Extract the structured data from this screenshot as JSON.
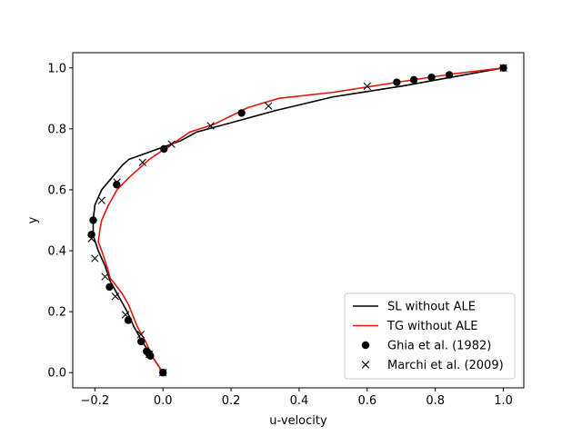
{
  "chart_data": {
    "type": "line",
    "title": "",
    "xlabel": "u-velocity",
    "ylabel": "y",
    "xlim": [
      -0.265,
      1.06
    ],
    "ylim": [
      -0.05,
      1.05
    ],
    "xticks": [
      -0.2,
      0.0,
      0.2,
      0.4,
      0.6,
      0.8,
      1.0
    ],
    "xtick_labels": [
      "−0.2",
      "0.0",
      "0.2",
      "0.4",
      "0.6",
      "0.8",
      "1.0"
    ],
    "yticks": [
      0.0,
      0.2,
      0.4,
      0.6,
      0.8,
      1.0
    ],
    "ytick_labels": [
      "0.0",
      "0.2",
      "0.4",
      "0.6",
      "0.8",
      "1.0"
    ],
    "grid": false,
    "legend_position": "lower-right",
    "series": [
      {
        "name": "SL without ALE",
        "kind": "line",
        "color": "#000000",
        "points": [
          [
            0.0,
            0.0
          ],
          [
            -0.03,
            0.05
          ],
          [
            -0.06,
            0.1
          ],
          [
            -0.085,
            0.15
          ],
          [
            -0.105,
            0.2
          ],
          [
            -0.13,
            0.25
          ],
          [
            -0.155,
            0.3
          ],
          [
            -0.17,
            0.35
          ],
          [
            -0.19,
            0.4
          ],
          [
            -0.205,
            0.45
          ],
          [
            -0.205,
            0.5
          ],
          [
            -0.2,
            0.55
          ],
          [
            -0.18,
            0.6
          ],
          [
            -0.15,
            0.64
          ],
          [
            -0.12,
            0.68
          ],
          [
            -0.1,
            0.7
          ],
          [
            -0.05,
            0.72
          ],
          [
            0.0,
            0.74
          ],
          [
            0.05,
            0.76
          ],
          [
            0.1,
            0.79
          ],
          [
            0.2,
            0.82
          ],
          [
            0.33,
            0.86
          ],
          [
            0.5,
            0.905
          ],
          [
            0.7,
            0.94
          ],
          [
            0.85,
            0.97
          ],
          [
            1.0,
            1.0
          ]
        ]
      },
      {
        "name": "TG without ALE",
        "kind": "line",
        "color": "#e8140c",
        "points": [
          [
            0.0,
            0.0
          ],
          [
            -0.03,
            0.05
          ],
          [
            -0.05,
            0.1
          ],
          [
            -0.075,
            0.15
          ],
          [
            -0.1,
            0.22
          ],
          [
            -0.12,
            0.26
          ],
          [
            -0.155,
            0.31
          ],
          [
            -0.165,
            0.35
          ],
          [
            -0.18,
            0.4
          ],
          [
            -0.19,
            0.43
          ],
          [
            -0.185,
            0.47
          ],
          [
            -0.18,
            0.5
          ],
          [
            -0.16,
            0.55
          ],
          [
            -0.135,
            0.6
          ],
          [
            -0.1,
            0.64
          ],
          [
            -0.05,
            0.69
          ],
          [
            -0.04,
            0.7
          ],
          [
            0.0,
            0.73
          ],
          [
            0.04,
            0.76
          ],
          [
            0.08,
            0.79
          ],
          [
            0.15,
            0.815
          ],
          [
            0.25,
            0.87
          ],
          [
            0.34,
            0.9
          ],
          [
            0.5,
            0.92
          ],
          [
            0.7,
            0.955
          ],
          [
            0.85,
            0.98
          ],
          [
            1.0,
            1.0
          ]
        ]
      },
      {
        "name": "Ghia et al. (1982)",
        "kind": "dot",
        "color": "#000000",
        "points": [
          [
            0.0,
            0.0
          ],
          [
            -0.037,
            0.055
          ],
          [
            -0.042,
            0.063
          ],
          [
            -0.048,
            0.07
          ],
          [
            -0.064,
            0.102
          ],
          [
            -0.102,
            0.172
          ],
          [
            -0.157,
            0.281
          ],
          [
            -0.21,
            0.453
          ],
          [
            -0.205,
            0.5
          ],
          [
            -0.136,
            0.617
          ],
          [
            0.003,
            0.734
          ],
          [
            0.231,
            0.852
          ],
          [
            0.687,
            0.953
          ],
          [
            0.737,
            0.961
          ],
          [
            0.789,
            0.969
          ],
          [
            0.841,
            0.977
          ],
          [
            1.0,
            1.0
          ]
        ]
      },
      {
        "name": "Marchi et al. (2009)",
        "kind": "x",
        "color": "#000000",
        "points": [
          [
            0.0,
            0.0
          ],
          [
            -0.04,
            0.06
          ],
          [
            -0.065,
            0.125
          ],
          [
            -0.11,
            0.19
          ],
          [
            -0.14,
            0.25
          ],
          [
            -0.17,
            0.315
          ],
          [
            -0.2,
            0.375
          ],
          [
            -0.21,
            0.44
          ],
          [
            -0.18,
            0.565
          ],
          [
            -0.135,
            0.625
          ],
          [
            -0.06,
            0.69
          ],
          [
            0.025,
            0.75
          ],
          [
            0.14,
            0.81
          ],
          [
            0.31,
            0.875
          ],
          [
            0.6,
            0.94
          ],
          [
            1.0,
            1.0
          ]
        ]
      }
    ]
  }
}
